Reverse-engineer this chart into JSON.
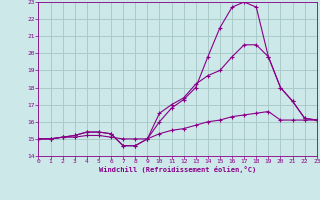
{
  "xlabel": "Windchill (Refroidissement éolien,°C)",
  "background_color": "#cce8e8",
  "grid_color": "#aacaca",
  "line_color": "#880088",
  "xmin": 0,
  "xmax": 23,
  "ymin": 14,
  "ymax": 23,
  "yticks": [
    14,
    15,
    16,
    17,
    18,
    19,
    20,
    21,
    22,
    23
  ],
  "xticks": [
    0,
    1,
    2,
    3,
    4,
    5,
    6,
    7,
    8,
    9,
    10,
    11,
    12,
    13,
    14,
    15,
    16,
    17,
    18,
    19,
    20,
    21,
    22,
    23
  ],
  "line1_x": [
    0,
    1,
    2,
    3,
    4,
    5,
    6,
    7,
    8,
    9,
    10,
    11,
    12,
    13,
    14,
    15,
    16,
    17,
    18,
    19,
    20,
    21,
    22,
    23
  ],
  "line1_y": [
    15.0,
    15.0,
    15.1,
    15.1,
    15.2,
    15.2,
    15.1,
    15.0,
    15.0,
    15.0,
    15.3,
    15.5,
    15.6,
    15.8,
    16.0,
    16.1,
    16.3,
    16.4,
    16.5,
    16.6,
    16.1,
    16.1,
    16.1,
    16.1
  ],
  "line2_x": [
    0,
    1,
    2,
    3,
    4,
    5,
    6,
    7,
    8,
    9,
    10,
    11,
    12,
    13,
    14,
    15,
    16,
    17,
    18,
    19,
    20,
    21,
    22,
    23
  ],
  "line2_y": [
    15.0,
    15.0,
    15.1,
    15.2,
    15.4,
    15.4,
    15.3,
    14.6,
    14.6,
    15.0,
    16.5,
    17.0,
    17.4,
    18.2,
    18.7,
    19.0,
    19.8,
    20.5,
    20.5,
    19.8,
    18.0,
    17.2,
    16.2,
    16.1
  ],
  "line3_x": [
    0,
    1,
    2,
    3,
    4,
    5,
    6,
    7,
    8,
    9,
    10,
    11,
    12,
    13,
    14,
    15,
    16,
    17,
    18,
    19,
    20,
    21,
    22,
    23
  ],
  "line3_y": [
    15.0,
    15.0,
    15.1,
    15.2,
    15.4,
    15.4,
    15.3,
    14.6,
    14.6,
    15.0,
    16.0,
    16.8,
    17.3,
    18.0,
    19.8,
    21.5,
    22.7,
    23.0,
    22.7,
    19.8,
    18.0,
    17.2,
    16.2,
    16.1
  ]
}
